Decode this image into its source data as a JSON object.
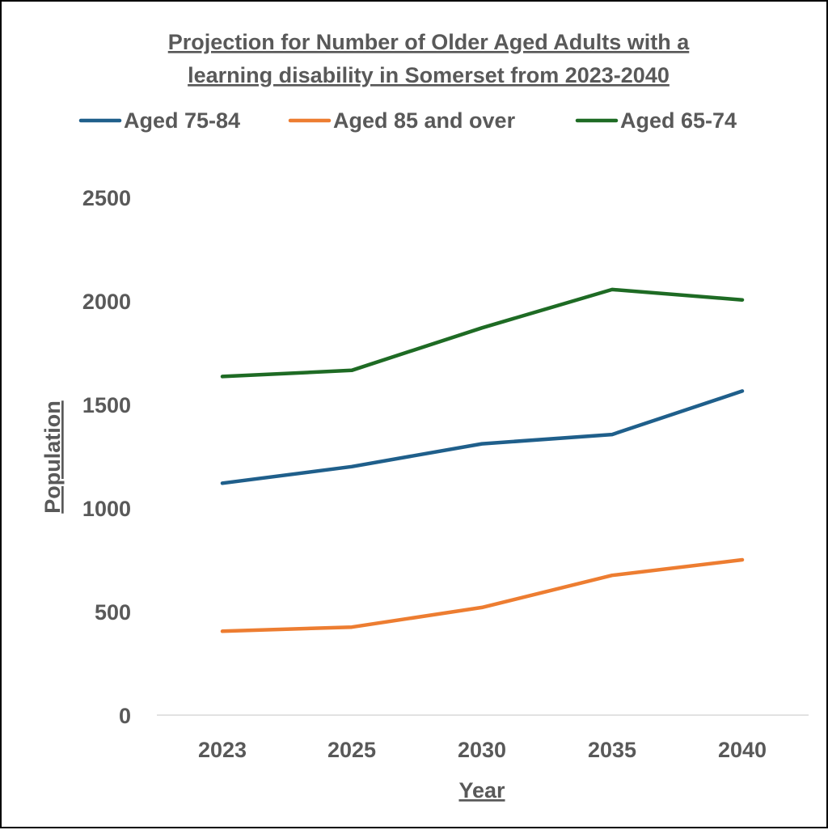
{
  "chart_data": {
    "type": "line",
    "title_lines": [
      "Projection for Number of Older Aged Adults with a",
      "learning disability  in Somerset from 2023-2040"
    ],
    "xlabel": "Year",
    "ylabel": "Population",
    "categories": [
      "2023",
      "2025",
      "2030",
      "2035",
      "2040"
    ],
    "yticks": [
      "0",
      "500",
      "1000",
      "1500",
      "2000",
      "2500"
    ],
    "ylim": [
      0,
      2500
    ],
    "grid": false,
    "legend_position": "top",
    "series": [
      {
        "name": "Aged 75-84",
        "color": "#1f5f8b",
        "values": [
          1120,
          1200,
          1310,
          1355,
          1565
        ]
      },
      {
        "name": "Aged 85 and over",
        "color": "#ed7d31",
        "values": [
          405,
          425,
          520,
          675,
          750
        ]
      },
      {
        "name": "Aged 65-74",
        "color": "#1e6b24",
        "values": [
          1635,
          1665,
          1870,
          2055,
          2005
        ]
      }
    ]
  }
}
